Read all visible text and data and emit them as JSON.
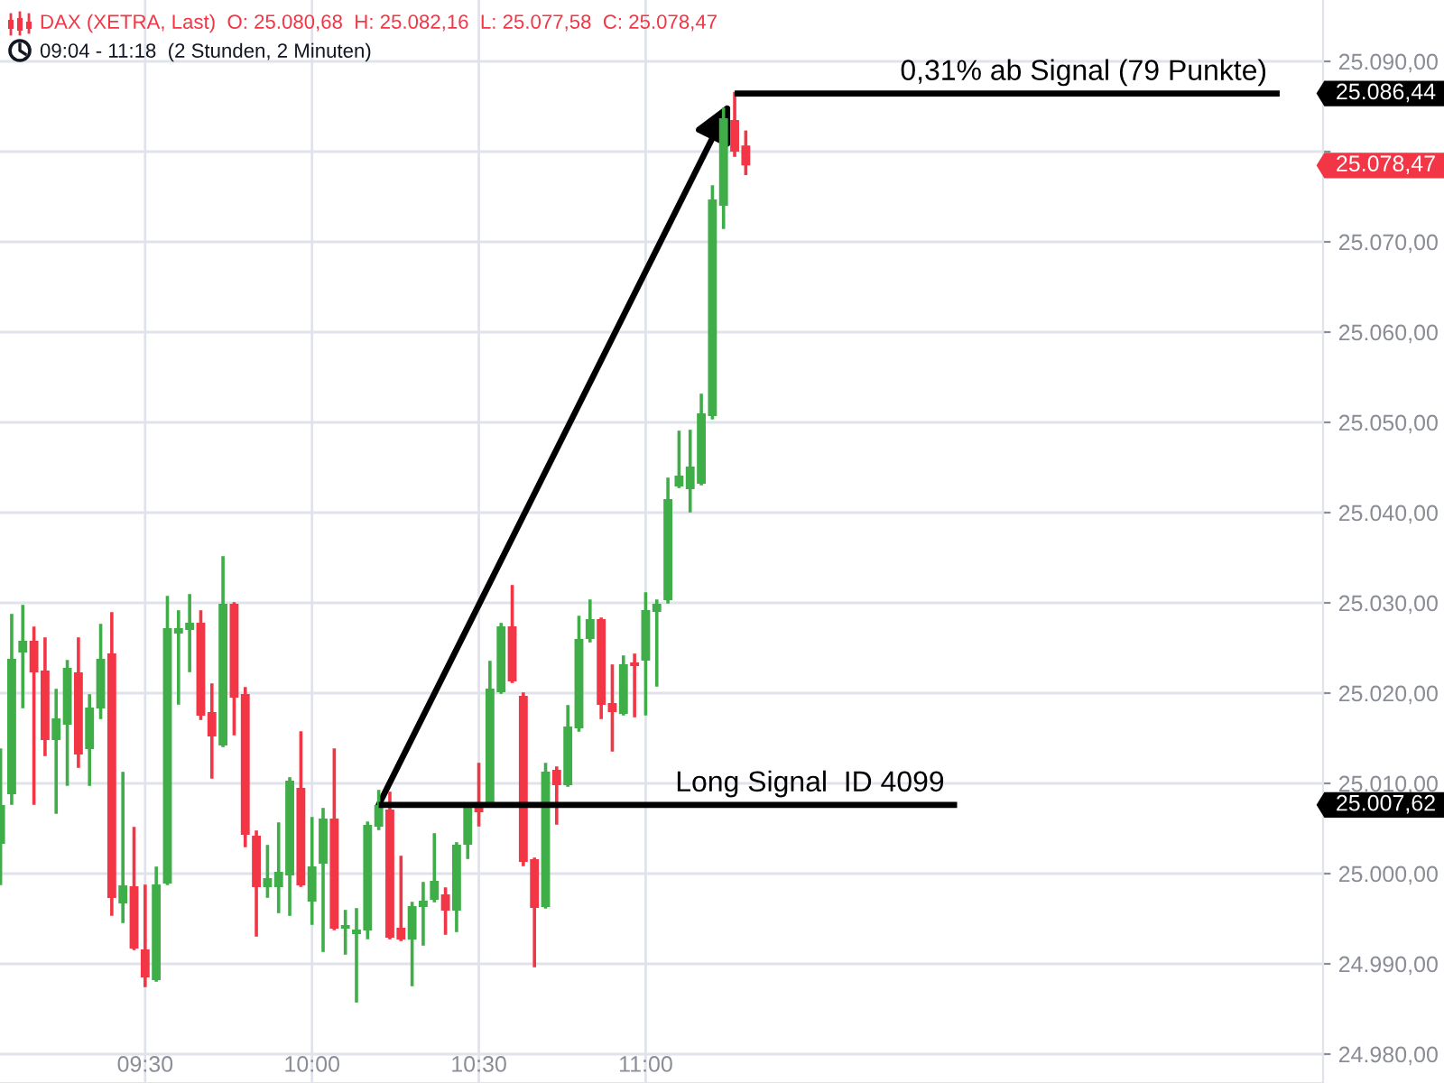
{
  "chart_data": {
    "type": "candlestick",
    "title": "DAX (XETRA, Last)  O: 25.080,68  H: 25.082,16  L: 25.077,58  C: 25.078,47",
    "subtitle": "09:04 - 11:18  (2 Stunden, 2 Minuten)",
    "x": [
      9.0667,
      9.1,
      9.1333,
      9.1667,
      9.2,
      9.2333,
      9.2667,
      9.3,
      9.3333,
      9.3667,
      9.4,
      9.4333,
      9.4667,
      9.5,
      9.5333,
      9.5667,
      9.6,
      9.6333,
      9.6667,
      9.7,
      9.7333,
      9.7667,
      9.8,
      9.8333,
      9.8667,
      9.9,
      9.9333,
      9.9667,
      10,
      10.0333,
      10.0667,
      10.1,
      10.1333,
      10.1667,
      10.2,
      10.2333,
      10.2667,
      10.3,
      10.3333,
      10.3667,
      10.4,
      10.4333,
      10.4667,
      10.5,
      10.5333,
      10.5667,
      10.6,
      10.6333,
      10.6667,
      10.7,
      10.7333,
      10.7667,
      10.8,
      10.8333,
      10.8667,
      10.9,
      10.9333,
      10.9667,
      11,
      11.0333,
      11.0667,
      11.1,
      11.1333,
      11.1667,
      11.2,
      11.2333,
      11.2667,
      11.3
    ],
    "ohlc": [
      [
        25003.3,
        25013.7,
        24998.9,
        25007.6
      ],
      [
        25008.8,
        25028.6,
        25007.8,
        25023.8
      ],
      [
        25024.5,
        25029.6,
        25018.5,
        25025.8
      ],
      [
        25025.8,
        25027.2,
        25007.8,
        25022.3
      ],
      [
        25022.5,
        25026.0,
        25013.2,
        25014.8
      ],
      [
        25014.8,
        25020.3,
        25006.8,
        25017.2
      ],
      [
        25016.5,
        25023.5,
        25009.9,
        25022.8
      ],
      [
        25022.3,
        25026.0,
        25011.9,
        25013.2
      ],
      [
        25013.8,
        25019.7,
        25009.9,
        25018.4
      ],
      [
        25018.3,
        25027.5,
        25017.3,
        25023.8
      ],
      [
        25024.4,
        25028.8,
        24995.5,
        24997.3
      ],
      [
        24996.7,
        25011.1,
        24994.7,
        24998.7
      ],
      [
        24998.6,
        25005.0,
        24991.7,
        24991.7
      ],
      [
        24991.6,
        24998.6,
        24987.6,
        24988.5
      ],
      [
        24988.2,
        25000.6,
        24988.2,
        24998.8
      ],
      [
        24998.9,
        25030.6,
        24998.9,
        25027.2
      ],
      [
        25026.6,
        25029.0,
        25018.9,
        25027.2
      ],
      [
        25027.0,
        25030.8,
        25022.5,
        25027.8
      ],
      [
        25027.8,
        25029.0,
        25017.2,
        25017.5
      ],
      [
        25017.9,
        25020.9,
        25010.7,
        25015.2
      ],
      [
        25014.2,
        25035.0,
        25014.2,
        25029.9
      ],
      [
        25029.9,
        25029.9,
        25015.5,
        25019.5
      ],
      [
        25019.9,
        25020.5,
        25003.1,
        25004.3
      ],
      [
        25004.2,
        25004.6,
        24993.2,
        24998.5
      ],
      [
        24998.5,
        25003.0,
        24997.5,
        24999.5
      ],
      [
        24998.5,
        25005.5,
        24995.8,
        25000.2
      ],
      [
        24999.8,
        25010.5,
        24995.5,
        25010.3
      ],
      [
        25009.5,
        25015.6,
        24998.7,
        24998.7
      ],
      [
        24996.9,
        25006.1,
        24994.5,
        25000.8
      ],
      [
        25001.1,
        25007.1,
        24991.5,
        25006.1
      ],
      [
        25006.1,
        25013.7,
        24993.9,
        24993.9
      ],
      [
        24993.9,
        24995.8,
        24991.2,
        24994.3
      ],
      [
        24993.3,
        24996.0,
        24985.9,
        24993.8
      ],
      [
        24993.7,
        25005.6,
        24992.9,
        25005.4
      ],
      [
        25005.2,
        25009.1,
        25005.0,
        25007.6
      ],
      [
        25007.1,
        25008.9,
        24992.9,
        24992.9
      ],
      [
        24994.0,
        25001.8,
        24992.7,
        24992.7
      ],
      [
        24992.7,
        24996.7,
        24987.7,
        24996.4
      ],
      [
        24996.3,
        24998.9,
        24992.2,
        24997.0
      ],
      [
        24997.1,
        25004.3,
        24997.0,
        24999.2
      ],
      [
        24997.7,
        24998.3,
        24993.4,
        24995.9
      ],
      [
        24995.9,
        25003.3,
        24993.7,
        25003.2
      ],
      [
        25003.2,
        25007.6,
        25001.8,
        25007.4
      ],
      [
        25007.4,
        25012.1,
        25005.4,
        25006.8
      ],
      [
        25007.8,
        25023.4,
        25007.8,
        25020.5
      ],
      [
        25020.1,
        25027.6,
        25020.1,
        25027.4
      ],
      [
        25027.4,
        25031.8,
        25021.3,
        25021.3
      ],
      [
        25019.7,
        25019.9,
        25001.0,
        25001.3
      ],
      [
        25001.6,
        25001.6,
        24989.8,
        24996.2
      ],
      [
        24996.3,
        25012.1,
        24996.3,
        25011.3
      ],
      [
        25011.5,
        25011.7,
        25005.6,
        25009.8
      ],
      [
        25009.8,
        25018.5,
        25009.8,
        25016.3
      ],
      [
        25016.1,
        25028.4,
        25015.9,
        25026.0
      ],
      [
        25026.0,
        25030.2,
        25025.8,
        25028.2
      ],
      [
        25028.2,
        25028.2,
        25017.3,
        25018.7
      ],
      [
        25018.9,
        25023.0,
        25013.7,
        25017.9
      ],
      [
        25017.7,
        25024.0,
        25017.7,
        25023.2
      ],
      [
        25023.4,
        25024.2,
        25017.5,
        25023.0
      ],
      [
        25023.6,
        25031.0,
        25017.7,
        25029.2
      ],
      [
        25029.0,
        25030.2,
        25020.9,
        25029.9
      ],
      [
        25030.3,
        25043.7,
        25030.1,
        25041.5
      ],
      [
        25042.9,
        25048.9,
        25042.9,
        25044.1
      ],
      [
        25042.6,
        25049.0,
        25040.2,
        25045.1
      ],
      [
        25043.2,
        25053.0,
        25043.2,
        25051.0
      ],
      [
        25050.7,
        25076.1,
        25050.5,
        25074.7
      ],
      [
        25074.0,
        25084.7,
        25071.6,
        25083.7
      ],
      [
        25083.5,
        25086.44,
        25079.6,
        25080.0
      ],
      [
        25080.68,
        25082.16,
        25077.58,
        25078.47
      ]
    ],
    "colors": [
      "#3fae49",
      "#3fae49",
      "#3fae49",
      "#f23645",
      "#f23645",
      "#3fae49",
      "#3fae49",
      "#f23645",
      "#3fae49",
      "#3fae49",
      "#f23645",
      "#3fae49",
      "#f23645",
      "#f23645",
      "#3fae49",
      "#3fae49",
      "#3fae49",
      "#3fae49",
      "#f23645",
      "#f23645",
      "#3fae49",
      "#f23645",
      "#f23645",
      "#f23645",
      "#3fae49",
      "#3fae49",
      "#3fae49",
      "#f23645",
      "#3fae49",
      "#3fae49",
      "#f23645",
      "#3fae49",
      "#3fae49",
      "#3fae49",
      "#3fae49",
      "#f23645",
      "#f23645",
      "#3fae49",
      "#3fae49",
      "#3fae49",
      "#f23645",
      "#3fae49",
      "#3fae49",
      "#f23645",
      "#3fae49",
      "#3fae49",
      "#f23645",
      "#f23645",
      "#f23645",
      "#3fae49",
      "#f23645",
      "#3fae49",
      "#3fae49",
      "#3fae49",
      "#f23645",
      "#f23645",
      "#3fae49",
      "#f23645",
      "#3fae49",
      "#3fae49",
      "#3fae49",
      "#3fae49",
      "#3fae49",
      "#3fae49",
      "#3fae49",
      "#3fae49",
      "#f23645",
      "#f23645"
    ],
    "value_labels": [
      null,
      null,
      null,
      null,
      null,
      null,
      null,
      null,
      null,
      null,
      null,
      null,
      null,
      null,
      null,
      null,
      null,
      null,
      null,
      null,
      null,
      null,
      null,
      null,
      null,
      null,
      null,
      null,
      null,
      null,
      null,
      null,
      null,
      null,
      null,
      null,
      null,
      null,
      null,
      null,
      null,
      null,
      null,
      null,
      null,
      null,
      null,
      null,
      null,
      null,
      null,
      null,
      null,
      null,
      null,
      null,
      null,
      null,
      null,
      null,
      null,
      null,
      null,
      null,
      null,
      null,
      null,
      "25.078,47"
    ],
    "series": [
      {
        "type": "line",
        "name": "Long Signal  ID 4099",
        "color": "#000000",
        "x": [
          10.2,
          11.9333
        ],
        "values": [
          25007.62,
          25007.62
        ]
      },
      {
        "type": "line",
        "name": "0,31% ab Signal (79 Punkte)",
        "color": "#000000",
        "x": [
          11.2667,
          12.9
        ],
        "values": [
          25086.44,
          25086.44
        ]
      }
    ],
    "annotations": [
      "25.007,62",
      "25.086,44"
    ],
    "xlim": [
      9.065,
      13.03
    ],
    "ylim": [
      24976.8,
      25096.8
    ],
    "xticks": [
      {
        "value": 9.5,
        "label": "09:30"
      },
      {
        "value": 10,
        "label": "10:00"
      },
      {
        "value": 10.5,
        "label": "10:30"
      },
      {
        "value": 11,
        "label": "11:00"
      }
    ],
    "yticks": [
      {
        "value": 24980,
        "label": "24.980,00"
      },
      {
        "value": 24990,
        "label": "24.990,00"
      },
      {
        "value": 25000,
        "label": "25.000,00"
      },
      {
        "value": 25010,
        "label": "25.010,00"
      },
      {
        "value": 25020,
        "label": "25.020,00"
      },
      {
        "value": 25030,
        "label": "25.030,00"
      },
      {
        "value": 25040,
        "label": "25.040,00"
      },
      {
        "value": 25050,
        "label": "25.050,00"
      },
      {
        "value": 25060,
        "label": "25.060,00"
      },
      {
        "value": 25070,
        "label": "25.070,00"
      },
      {
        "value": 25080,
        "label": null
      },
      {
        "value": 25090,
        "label": "25.090,00"
      }
    ],
    "grid": true
  }
}
